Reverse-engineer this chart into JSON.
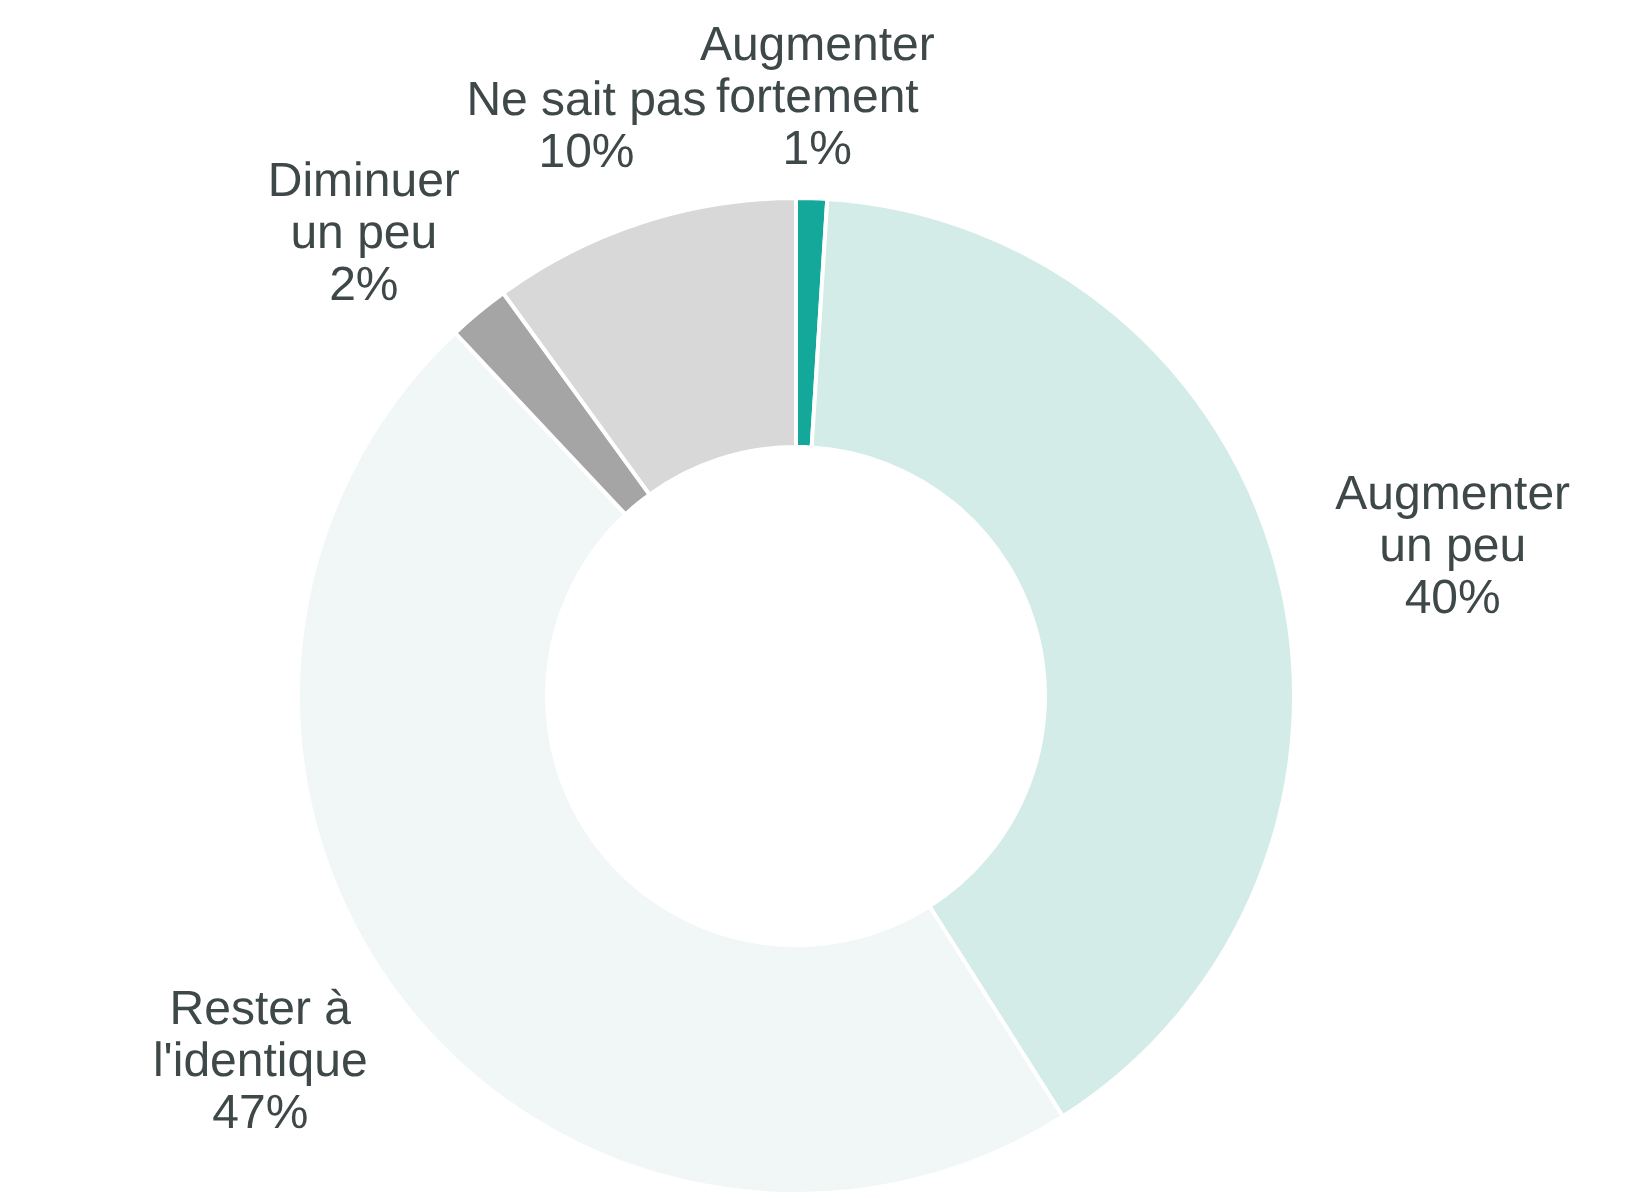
{
  "chart_data": {
    "type": "donut",
    "categories": [
      "Augmenter fortement",
      "Augmenter un peu",
      "Rester à l'identique",
      "Diminuer un peu",
      "Ne sait pas"
    ],
    "values": [
      1,
      40,
      47,
      2,
      10
    ],
    "colors": [
      "#13a89a",
      "#d4ece8",
      "#f1f7f6",
      "#a5a5a5",
      "#d8d8d8"
    ],
    "value_labels": [
      "1%",
      "40%",
      "47%",
      "2%",
      "10%"
    ],
    "legend": false
  }
}
